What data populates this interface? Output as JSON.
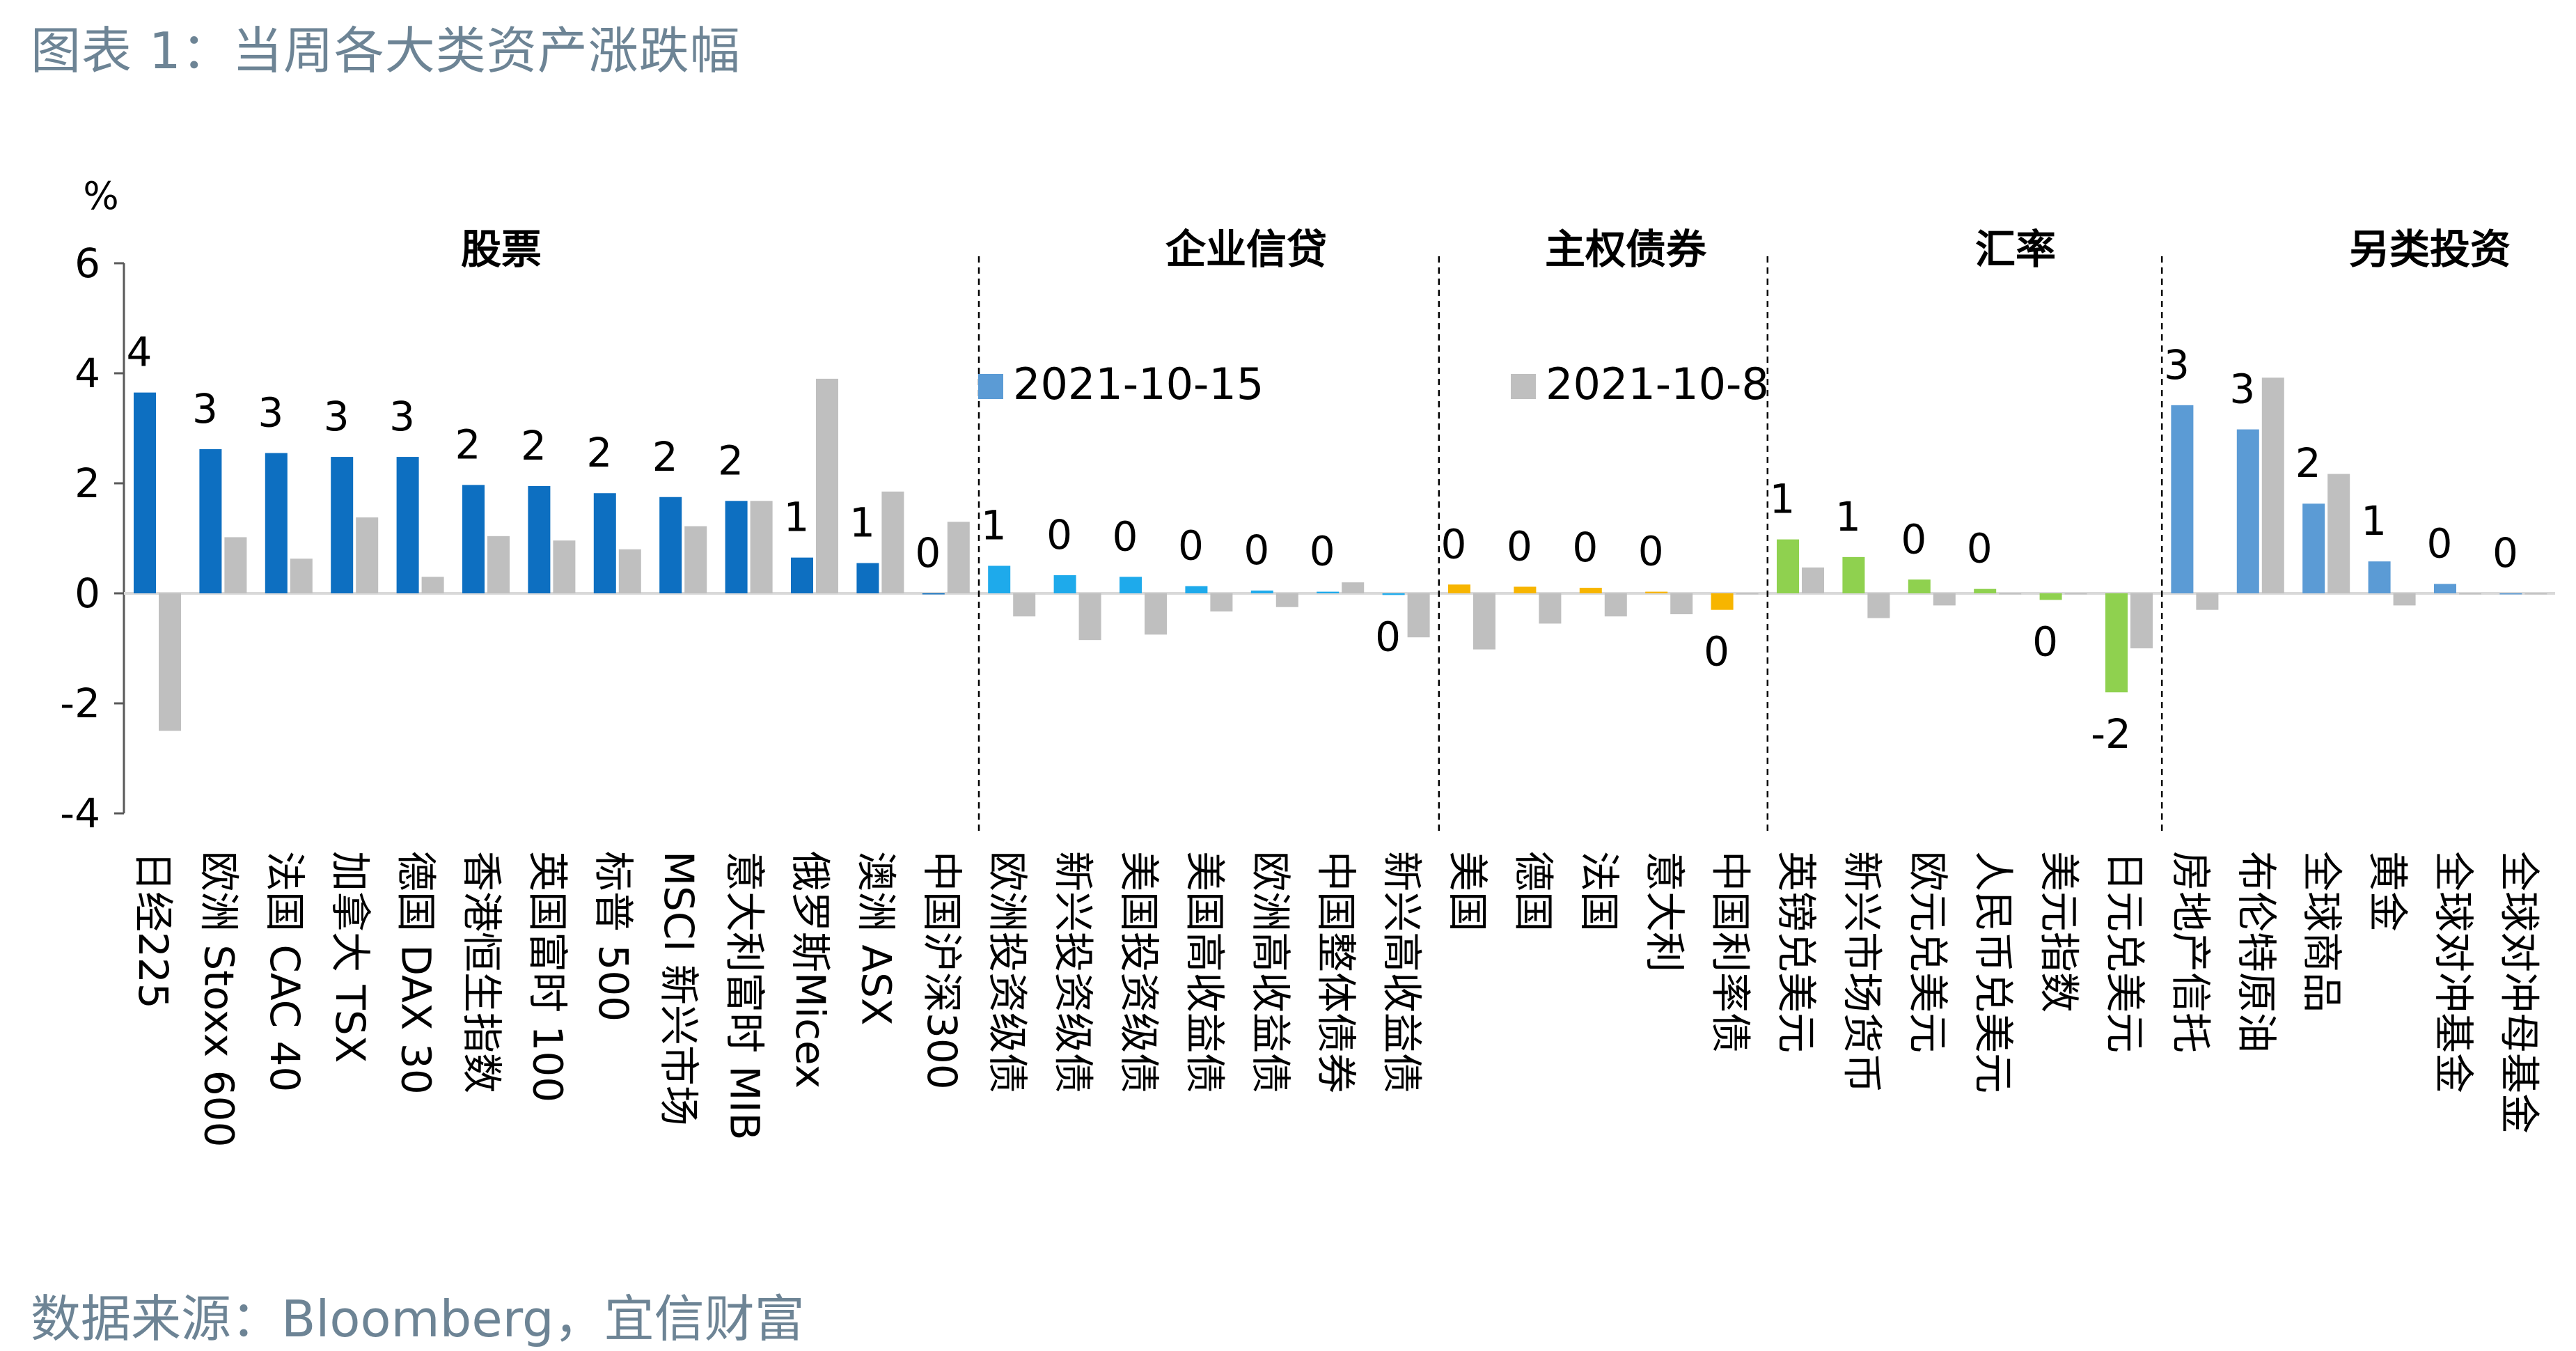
{
  "title": "图表 1：当周各大类资产涨跌幅",
  "source": "数据来源：Bloomberg，宜信财富",
  "chart_data": {
    "type": "bar",
    "ylabel": "%",
    "ylim": [
      -4,
      6
    ],
    "yticks": [
      6,
      4,
      2,
      0,
      -2,
      -4
    ],
    "legend": [
      "2021-10-15",
      "2021-10-8"
    ],
    "groups": [
      {
        "label": "股票",
        "color": "#0d6fc1",
        "categories": [
          "日经225",
          "欧洲 Stoxx 600",
          "法国 CAC 40",
          "加拿大 TSX",
          "德国 DAX 30",
          "香港恒生指数",
          "英国富时 100",
          "标普 500",
          "MSCI 新兴市场",
          "意大利富时 MIB",
          "俄罗斯Micex",
          "澳洲 ASX",
          "中国沪深300"
        ],
        "current": [
          3.65,
          2.62,
          2.55,
          2.48,
          2.48,
          1.97,
          1.95,
          1.82,
          1.75,
          1.68,
          0.65,
          0.55,
          0.0
        ],
        "previous": [
          -2.5,
          1.02,
          0.63,
          1.38,
          0.3,
          1.04,
          0.96,
          0.8,
          1.22,
          1.68,
          3.9,
          1.85,
          1.3
        ],
        "labels": [
          "4",
          "3",
          "3",
          "3",
          "3",
          "2",
          "2",
          "2",
          "2",
          "2",
          "1",
          "1",
          "0"
        ]
      },
      {
        "label": "企业信贷",
        "color": "#1eaaeb",
        "categories": [
          "欧洲投资级债",
          "新兴投资级债",
          "美国投资级债",
          "美国高收益债",
          "欧洲高收益债",
          "中国整体债券",
          "新兴高收益债"
        ],
        "current": [
          0.5,
          0.33,
          0.3,
          0.13,
          0.05,
          0.03,
          -0.03
        ],
        "previous": [
          -0.42,
          -0.85,
          -0.75,
          -0.33,
          -0.25,
          0.2,
          -0.8
        ],
        "labels": [
          "1",
          "0",
          "0",
          "0",
          "0",
          "0",
          "0"
        ]
      },
      {
        "label": "主权债券",
        "color": "#f7b500",
        "categories": [
          "美国",
          "德国",
          "法国",
          "意大利",
          "中国利率债"
        ],
        "current": [
          0.16,
          0.12,
          0.1,
          0.03,
          -0.3
        ],
        "previous": [
          -1.02,
          -0.55,
          -0.42,
          -0.38,
          0.0
        ],
        "labels": [
          "0",
          "0",
          "0",
          "0",
          "0"
        ]
      },
      {
        "label": "汇率",
        "color": "#8fd14f",
        "categories": [
          "英镑兑美元",
          "新兴市场货币",
          "欧元兑美元",
          "人民币兑美元",
          "美元指数",
          "日元兑美元"
        ],
        "current": [
          0.98,
          0.66,
          0.25,
          0.08,
          -0.12,
          -1.8
        ],
        "previous": [
          0.47,
          -0.45,
          -0.22,
          0.0,
          0.0,
          -1.0
        ],
        "labels": [
          "1",
          "1",
          "0",
          "0",
          "0",
          "-2"
        ]
      },
      {
        "label": "另类投资",
        "color": "#5b9bd5",
        "categories": [
          "房地产信托",
          "布伦特原油",
          "全球商品",
          "黄金",
          "全球对冲基金",
          "全球对冲母基金"
        ],
        "current": [
          3.42,
          2.98,
          1.63,
          0.58,
          0.17,
          0.0
        ],
        "previous": [
          -0.3,
          3.92,
          2.17,
          -0.22,
          0.0,
          0.0
        ],
        "labels": [
          "3",
          "3",
          "2",
          "1",
          "0",
          "0"
        ]
      }
    ],
    "previous_color": "#bfbfbf"
  }
}
